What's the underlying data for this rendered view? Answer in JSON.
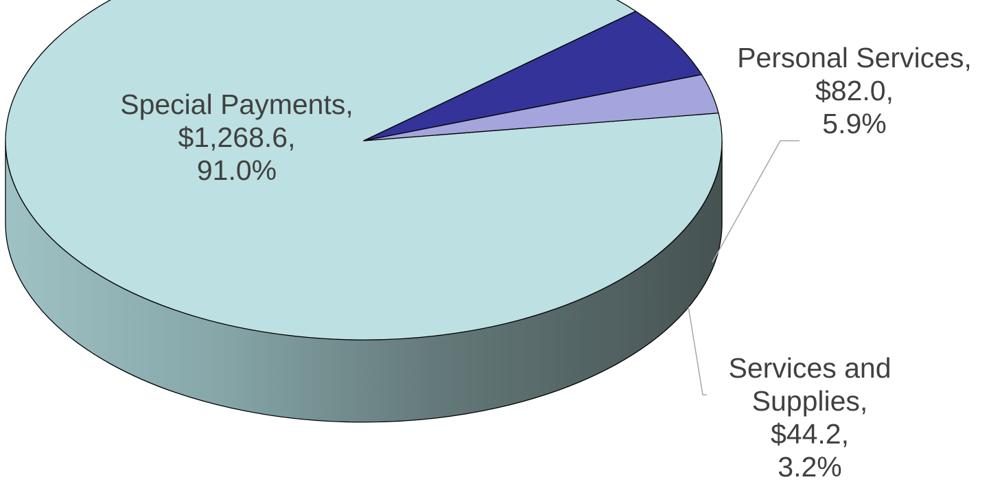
{
  "chart_data": {
    "type": "pie",
    "title": "",
    "slices": [
      {
        "name": "Special Payments",
        "value": 1268.6,
        "percent": 91.0,
        "label": [
          "Special Payments,",
          "$1,268.6,",
          "91.0%"
        ],
        "color": "#bde0e2"
      },
      {
        "name": "Personal Services",
        "value": 82.0,
        "percent": 5.9,
        "label": [
          "Personal Services,",
          "$82.0,",
          "5.9%"
        ],
        "color": "#333399"
      },
      {
        "name": "Services and Supplies",
        "value": 44.2,
        "percent": 3.2,
        "label": [
          "Services and",
          "Supplies,",
          "$44.2,",
          "3.2%"
        ],
        "color": "#a5a5dd"
      }
    ],
    "legend": "none",
    "style": "3d-exploded-pie"
  }
}
